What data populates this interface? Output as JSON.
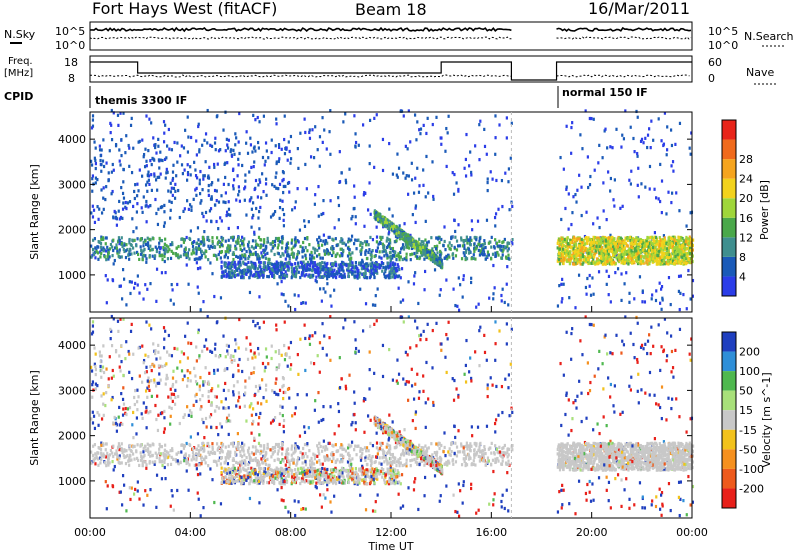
{
  "header": {
    "station": "Fort Hays West (fitACF)",
    "beam": "Beam 18",
    "date": "16/Mar/2011"
  },
  "top_panels": {
    "nsky_label": "N.Sky",
    "nsearch_label": "N.Search",
    "noise_left_ticks": [
      "10^5",
      "10^0"
    ],
    "noise_right_ticks": [
      "10^5",
      "10^0"
    ],
    "freq_label": "Freq.",
    "freq_unit": "[MHz]",
    "freq_ticks": [
      "18",
      "8"
    ],
    "nave_label": "Nave",
    "nave_ticks": [
      "60",
      "0"
    ],
    "cpid_label": "CPID",
    "cpid_segments": [
      {
        "label": "themis 3300 IF",
        "start": 0.0,
        "end": 18.6
      },
      {
        "label": "normal 150 IF",
        "start": 18.6,
        "end": 24.0
      }
    ]
  },
  "chart_data": [
    {
      "type": "heatmap",
      "title": "",
      "xlabel": "",
      "ylabel": "Slant Range [km]",
      "xlim": [
        0,
        24
      ],
      "ylim": [
        180,
        4600
      ],
      "y_ticks": [
        1000,
        2000,
        3000,
        4000
      ],
      "colorbar": {
        "label": "Power [dB]",
        "ticks": [
          "4",
          "8",
          "12",
          "16",
          "20",
          "24",
          "28"
        ],
        "colors": [
          "#2b3de8",
          "#1a5ab8",
          "#3f8f8f",
          "#4aa84a",
          "#9fd63a",
          "#f2d21c",
          "#f5a41e",
          "#f06a1c",
          "#e8241a"
        ]
      },
      "data_gap": [
        16.8,
        18.6
      ],
      "dominant_features": [
        {
          "name": "near band",
          "start": 0.0,
          "end": 16.8,
          "range_km": [
            1300,
            1800
          ],
          "power_db": 10
        },
        {
          "name": "mid band",
          "start": 5.2,
          "end": 12.3,
          "range_km": [
            900,
            1250
          ],
          "power_db": 6
        },
        {
          "name": "rising arc",
          "start": 11.3,
          "end": 14.0,
          "range_km": [
            1200,
            2300
          ],
          "power_db": 12
        },
        {
          "name": "late band",
          "start": 18.6,
          "end": 24.0,
          "range_km": [
            1200,
            1800
          ],
          "power_db": 20
        }
      ]
    },
    {
      "type": "heatmap",
      "title": "",
      "xlabel": "Time UT",
      "ylabel": "Slant Range [km]",
      "xlim": [
        0,
        24
      ],
      "ylim": [
        180,
        4600
      ],
      "y_ticks": [
        1000,
        2000,
        3000,
        4000
      ],
      "x_ticks": [
        "00:00",
        "04:00",
        "08:00",
        "12:00",
        "16:00",
        "20:00",
        "00:00"
      ],
      "colorbar": {
        "label": "Velocity [m s^-1]",
        "ticks": [
          "200",
          "100",
          "50",
          "15",
          "-15",
          "-50",
          "-100",
          "-200"
        ],
        "colors": [
          "#1f3fbf",
          "#2f8fd8",
          "#4fb84f",
          "#a8e07a",
          "#c8c8c8",
          "#f2c21c",
          "#f5901e",
          "#ee5a1c",
          "#e8201a"
        ]
      },
      "data_gap": [
        16.8,
        18.6
      ]
    }
  ]
}
